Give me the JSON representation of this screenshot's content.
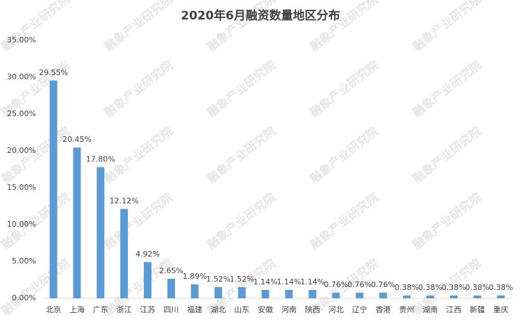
{
  "watermark": "融象产业研究院",
  "chart_data": {
    "type": "bar",
    "title": "2020年6月融资数量地区分布",
    "categories": [
      "北京",
      "上海",
      "广东",
      "浙江",
      "江苏",
      "四川",
      "福建",
      "湖北",
      "山东",
      "安徽",
      "河南",
      "陕西",
      "河北",
      "辽宁",
      "香港",
      "贵州",
      "湖南",
      "江西",
      "新疆",
      "重庆"
    ],
    "values": [
      29.55,
      20.45,
      17.8,
      12.12,
      4.92,
      2.65,
      1.89,
      1.52,
      1.52,
      1.14,
      1.14,
      1.14,
      0.76,
      0.76,
      0.76,
      0.38,
      0.38,
      0.38,
      0.38,
      0.38
    ],
    "value_labels": [
      "29.55%",
      "20.45%",
      "17.80%",
      "12.12%",
      "4.92%",
      "2.65%",
      "1.89%",
      "1.52%",
      "1.52%",
      "1.14%",
      "1.14%",
      "1.14%",
      "0.76%",
      "0.76%",
      "0.76%",
      "0.38%",
      "0.38%",
      "0.38%",
      "0.38%",
      "0.38%"
    ],
    "color": "#5b9bd5",
    "ylim": [
      0,
      35
    ],
    "yticks": [
      {
        "value": 0,
        "label": "0.00%"
      },
      {
        "value": 5,
        "label": "5.00%"
      },
      {
        "value": 10,
        "label": "10.00%"
      },
      {
        "value": 15,
        "label": "15.00%"
      },
      {
        "value": 20,
        "label": "20.00%"
      },
      {
        "value": 25,
        "label": "25.00%"
      },
      {
        "value": 30,
        "label": "30.00%"
      },
      {
        "value": 35,
        "label": "35.00%"
      }
    ],
    "grid": false
  }
}
